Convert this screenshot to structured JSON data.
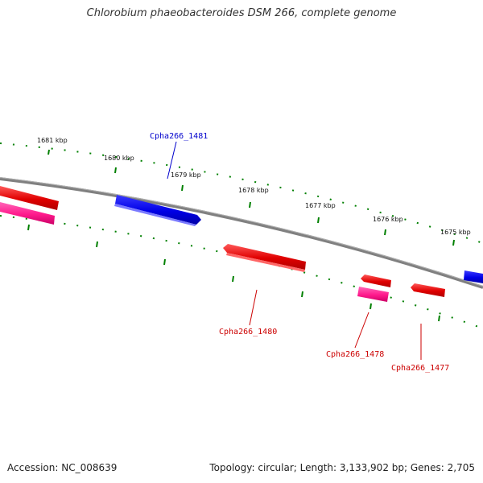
{
  "title": "Chlorobium phaeobacteroides DSM 266, complete genome",
  "footer": {
    "accession": "Accession: NC_008639",
    "summary": "Topology: circular; Length: 3,133,902 bp; Genes: 2,705"
  },
  "scale_labels": [
    "1681 kbp",
    "1680 kbp",
    "1679 kbp",
    "1678 kbp",
    "1677 kbp",
    "1676 kbp",
    "1675 kbp"
  ],
  "genes": [
    {
      "id": "Cpha266_1481",
      "color": "#0000ee",
      "labeled": true
    },
    {
      "id": "Cpha266_1480",
      "color": "#ee0000",
      "labeled": true
    },
    {
      "id": "Cpha266_1478",
      "color": "#ee0000",
      "labeled": true
    },
    {
      "id": "Cpha266_1477",
      "color": "#ee0000",
      "labeled": true
    }
  ],
  "colors": {
    "forward_gene": "#0000ee",
    "reverse_gene": "#ee0000",
    "rna_gene": "#ff3399",
    "backbone": "#808080",
    "scale_ticks": "#008000"
  }
}
